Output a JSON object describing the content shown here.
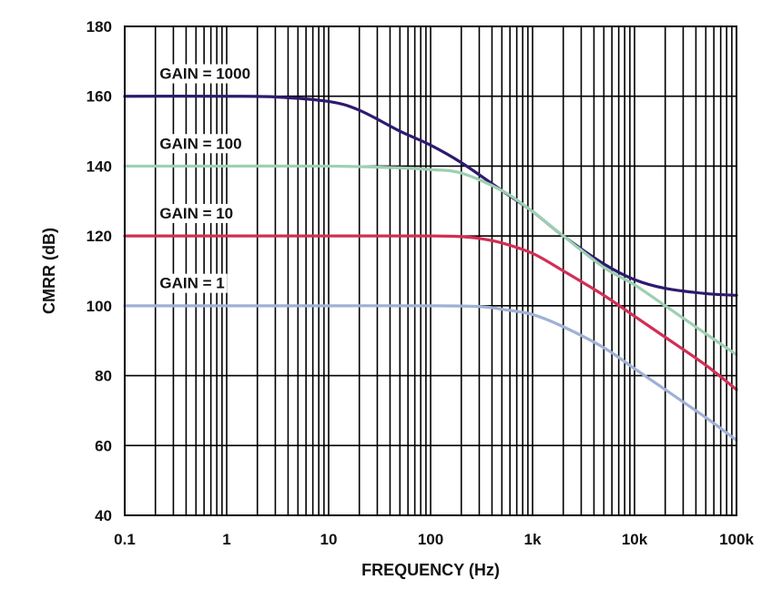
{
  "chart_data": {
    "type": "line",
    "xlabel": "FREQUENCY (Hz)",
    "ylabel": "CMRR (dB)",
    "x_scale": "log",
    "xlim": [
      0.1,
      100000
    ],
    "ylim": [
      40,
      180
    ],
    "grid": true,
    "x_ticks": [
      {
        "value": 0.1,
        "label": "0.1"
      },
      {
        "value": 1,
        "label": "1"
      },
      {
        "value": 10,
        "label": "10"
      },
      {
        "value": 100,
        "label": "100"
      },
      {
        "value": 1000,
        "label": "1k"
      },
      {
        "value": 10000,
        "label": "10k"
      },
      {
        "value": 100000,
        "label": "100k"
      }
    ],
    "y_ticks": [
      {
        "value": 40,
        "label": "40"
      },
      {
        "value": 60,
        "label": "60"
      },
      {
        "value": 80,
        "label": "80"
      },
      {
        "value": 100,
        "label": "100"
      },
      {
        "value": 120,
        "label": "120"
      },
      {
        "value": 140,
        "label": "140"
      },
      {
        "value": 160,
        "label": "160"
      },
      {
        "value": 180,
        "label": "180"
      }
    ],
    "series": [
      {
        "name": "GAIN = 1000",
        "color": "#2e1a6e",
        "label_at": {
          "x": 0.22,
          "y": 165
        },
        "points": [
          [
            0.1,
            160
          ],
          [
            1,
            160
          ],
          [
            3,
            159.8
          ],
          [
            10,
            158.5
          ],
          [
            20,
            156
          ],
          [
            50,
            150
          ],
          [
            100,
            146
          ],
          [
            200,
            141
          ],
          [
            500,
            133
          ],
          [
            1000,
            127
          ],
          [
            2000,
            120
          ],
          [
            5000,
            112
          ],
          [
            10000,
            107.5
          ],
          [
            20000,
            105
          ],
          [
            50000,
            103.5
          ],
          [
            100000,
            103
          ]
        ]
      },
      {
        "name": "GAIN = 100",
        "color": "#9dd0b2",
        "label_at": {
          "x": 0.22,
          "y": 145
        },
        "points": [
          [
            0.1,
            140
          ],
          [
            1,
            140
          ],
          [
            10,
            140
          ],
          [
            50,
            139.5
          ],
          [
            100,
            139
          ],
          [
            200,
            138
          ],
          [
            500,
            133
          ],
          [
            1000,
            127
          ],
          [
            2000,
            120
          ],
          [
            5000,
            111
          ],
          [
            10000,
            106
          ],
          [
            20000,
            100
          ],
          [
            50000,
            92
          ],
          [
            100000,
            86
          ]
        ]
      },
      {
        "name": "GAIN = 10",
        "color": "#d12f55",
        "label_at": {
          "x": 0.22,
          "y": 125
        },
        "points": [
          [
            0.1,
            120
          ],
          [
            1,
            120
          ],
          [
            10,
            120
          ],
          [
            100,
            120
          ],
          [
            200,
            119.8
          ],
          [
            300,
            119.3
          ],
          [
            500,
            118
          ],
          [
            1000,
            115
          ],
          [
            2000,
            110
          ],
          [
            5000,
            103
          ],
          [
            10000,
            97
          ],
          [
            20000,
            91
          ],
          [
            50000,
            83
          ],
          [
            100000,
            76
          ]
        ]
      },
      {
        "name": "GAIN = 1",
        "color": "#9fb1d4",
        "label_at": {
          "x": 0.22,
          "y": 105
        },
        "points": [
          [
            0.1,
            100
          ],
          [
            1,
            100
          ],
          [
            10,
            100
          ],
          [
            100,
            100
          ],
          [
            300,
            99.8
          ],
          [
            500,
            99
          ],
          [
            1000,
            97.5
          ],
          [
            2000,
            94
          ],
          [
            5000,
            88
          ],
          [
            10000,
            82
          ],
          [
            20000,
            76
          ],
          [
            50000,
            68
          ],
          [
            100000,
            61.5
          ]
        ]
      }
    ]
  }
}
